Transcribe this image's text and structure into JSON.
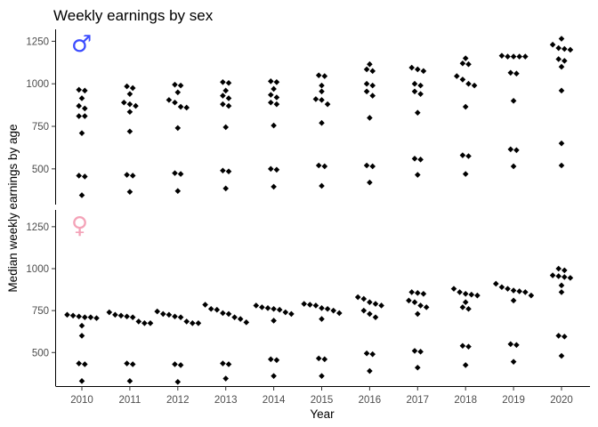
{
  "chart_data": {
    "type": "scatter",
    "title": "Weekly earnings by sex",
    "xlabel": "Year",
    "ylabel": "Median weekly earnings by age",
    "x_categories": [
      "2010",
      "2011",
      "2012",
      "2013",
      "2014",
      "2015",
      "2016",
      "2017",
      "2018",
      "2019",
      "2020"
    ],
    "grid": false,
    "marker": "diamond",
    "panels": [
      {
        "name": "male",
        "symbol": "♂",
        "symbol_color": "#3b4cff",
        "ylim": [
          290,
          1320
        ],
        "yticks": [
          500,
          750,
          1000,
          1250
        ],
        "points": {
          "2010": [
            965,
            960,
            915,
            870,
            855,
            810,
            810,
            710,
            460,
            455,
            345
          ],
          "2011": [
            985,
            975,
            940,
            890,
            880,
            870,
            835,
            720,
            465,
            460,
            365
          ],
          "2012": [
            995,
            990,
            950,
            905,
            890,
            865,
            860,
            740,
            475,
            470,
            370
          ],
          "2013": [
            1010,
            1005,
            960,
            930,
            915,
            880,
            870,
            745,
            490,
            485,
            385
          ],
          "2014": [
            1015,
            1010,
            970,
            935,
            920,
            890,
            880,
            755,
            500,
            495,
            395
          ],
          "2015": [
            1050,
            1045,
            990,
            955,
            910,
            905,
            880,
            770,
            520,
            515,
            400
          ],
          "2016": [
            1115,
            1085,
            1075,
            1000,
            990,
            955,
            930,
            800,
            520,
            515,
            420
          ],
          "2017": [
            1095,
            1085,
            1075,
            1000,
            990,
            955,
            940,
            830,
            560,
            555,
            465
          ],
          "2018": [
            1150,
            1120,
            1115,
            1045,
            1025,
            1000,
            990,
            865,
            580,
            575,
            470
          ],
          "2019": [
            1165,
            1160,
            1160,
            1160,
            1160,
            1065,
            1060,
            900,
            615,
            610,
            515
          ],
          "2020": [
            1265,
            1230,
            1210,
            1205,
            1200,
            1145,
            1135,
            1100,
            960,
            650,
            520
          ]
        }
      },
      {
        "name": "female",
        "symbol": "♀",
        "symbol_color": "#f4a3b8",
        "ylim": [
          300,
          1350
        ],
        "yticks": [
          500,
          750,
          1000,
          1250
        ],
        "points": {
          "2010": [
            725,
            720,
            715,
            710,
            710,
            705,
            660,
            600,
            435,
            430,
            330
          ],
          "2011": [
            740,
            725,
            720,
            715,
            710,
            685,
            675,
            675,
            435,
            430,
            330
          ],
          "2012": [
            745,
            730,
            725,
            715,
            710,
            685,
            675,
            675,
            430,
            425,
            325
          ],
          "2013": [
            785,
            760,
            755,
            735,
            730,
            710,
            700,
            680,
            435,
            430,
            345
          ],
          "2014": [
            780,
            770,
            765,
            760,
            755,
            740,
            730,
            690,
            460,
            455,
            360
          ],
          "2015": [
            790,
            785,
            780,
            765,
            760,
            750,
            735,
            700,
            465,
            460,
            360
          ],
          "2016": [
            830,
            820,
            800,
            790,
            780,
            750,
            730,
            710,
            495,
            490,
            390
          ],
          "2017": [
            860,
            855,
            850,
            810,
            800,
            780,
            770,
            730,
            510,
            505,
            410
          ],
          "2018": [
            880,
            860,
            850,
            845,
            840,
            800,
            770,
            760,
            540,
            535,
            425
          ],
          "2019": [
            910,
            890,
            880,
            870,
            865,
            860,
            840,
            810,
            550,
            545,
            445
          ],
          "2020": [
            1000,
            990,
            960,
            955,
            950,
            945,
            900,
            860,
            600,
            595,
            480
          ]
        }
      }
    ]
  }
}
